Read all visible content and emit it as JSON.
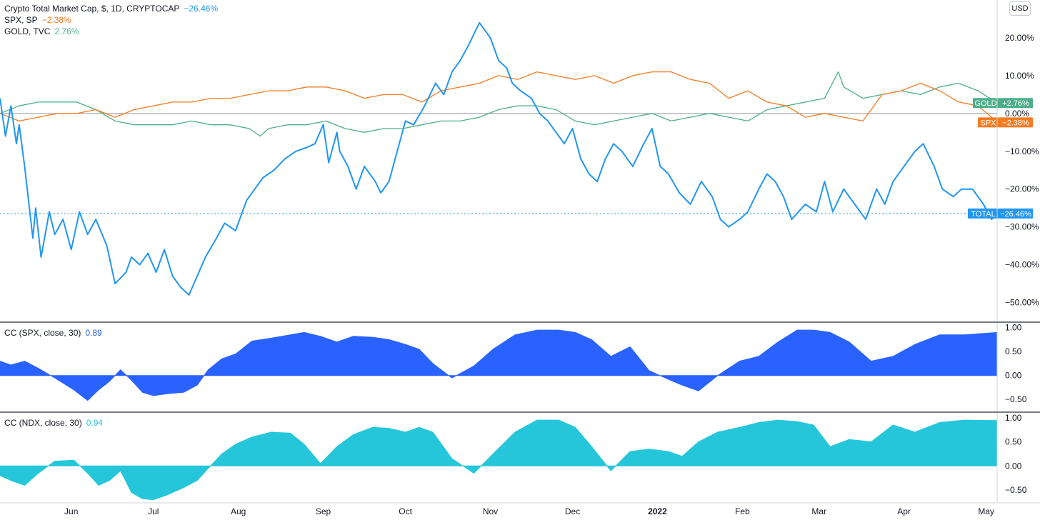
{
  "legend": {
    "total": {
      "label": "Crypto Total Market Cap, $, 1D, CRYPTOCAP",
      "value": "−26.46%"
    },
    "spx": {
      "label": "SPX, SP",
      "value": "−2.38%"
    },
    "gold": {
      "label": "GOLD, TVC",
      "value": "2.76%"
    }
  },
  "scale_button": "USD",
  "badges": {
    "gold": {
      "name": "GOLD",
      "value": "+2.76%"
    },
    "spx": {
      "name": "SPX",
      "value": "−2.38%"
    },
    "total": {
      "name": "TOTAL",
      "value": "−26.46%"
    }
  },
  "indicators": [
    {
      "label": "CC (SPX, close, 30)",
      "value": "0.89"
    },
    {
      "label": "CC (NDX, close, 30)",
      "value": "0.94"
    }
  ],
  "colors": {
    "total": "#2196f3",
    "spx": "#f57c22",
    "gold": "#4caf8a",
    "cc_spx": "#2962ff",
    "cc_ndx": "#26c6da"
  },
  "chart_data": [
    {
      "type": "line",
      "title": "Crypto Total Market Cap, $, 1D, CRYPTOCAP",
      "x_range": [
        "2021-05-06",
        "2022-05-05"
      ],
      "ylim": [
        -55,
        30
      ],
      "y_ticks": [
        {
          "value": 20,
          "label": "20.00%"
        },
        {
          "value": 10,
          "label": "10.00%"
        },
        {
          "value": 0,
          "label": "0.00%"
        },
        {
          "value": -10,
          "label": "−10.00%"
        },
        {
          "value": -20,
          "label": "−20.00%"
        },
        {
          "value": -30,
          "label": "−30.00%"
        },
        {
          "value": -40,
          "label": "−40.00%"
        },
        {
          "value": -50,
          "label": "−50.00%"
        }
      ],
      "x_ticks": [
        {
          "date": "2021-06-01",
          "label": "Jun"
        },
        {
          "date": "2021-07-01",
          "label": "Jul"
        },
        {
          "date": "2021-08-01",
          "label": "Aug"
        },
        {
          "date": "2021-09-01",
          "label": "Sep"
        },
        {
          "date": "2021-10-01",
          "label": "Oct"
        },
        {
          "date": "2021-11-01",
          "label": "Nov"
        },
        {
          "date": "2021-12-01",
          "label": "Dec"
        },
        {
          "date": "2022-01-01",
          "label": "2022"
        },
        {
          "date": "2022-02-01",
          "label": "Feb"
        },
        {
          "date": "2022-03-01",
          "label": "Mar"
        },
        {
          "date": "2022-04-01",
          "label": "Apr"
        },
        {
          "date": "2022-05-01",
          "label": "May"
        }
      ],
      "series": [
        {
          "name": "TOTAL",
          "color": "#2196f3",
          "dates": [
            "2021-05-06",
            "2021-05-08",
            "2021-05-10",
            "2021-05-12",
            "2021-05-13",
            "2021-05-15",
            "2021-05-18",
            "2021-05-19",
            "2021-05-21",
            "2021-05-24",
            "2021-05-26",
            "2021-05-29",
            "2021-06-01",
            "2021-06-04",
            "2021-06-07",
            "2021-06-10",
            "2021-06-14",
            "2021-06-17",
            "2021-06-21",
            "2021-06-23",
            "2021-06-26",
            "2021-06-29",
            "2021-07-02",
            "2021-07-05",
            "2021-07-08",
            "2021-07-11",
            "2021-07-14",
            "2021-07-17",
            "2021-07-20",
            "2021-07-24",
            "2021-07-27",
            "2021-07-31",
            "2021-08-04",
            "2021-08-07",
            "2021-08-10",
            "2021-08-14",
            "2021-08-18",
            "2021-08-22",
            "2021-08-26",
            "2021-08-29",
            "2021-09-01",
            "2021-09-03",
            "2021-09-06",
            "2021-09-07",
            "2021-09-10",
            "2021-09-13",
            "2021-09-16",
            "2021-09-20",
            "2021-09-22",
            "2021-09-25",
            "2021-09-28",
            "2021-10-01",
            "2021-10-04",
            "2021-10-08",
            "2021-10-12",
            "2021-10-15",
            "2021-10-18",
            "2021-10-21",
            "2021-10-24",
            "2021-10-28",
            "2021-11-01",
            "2021-11-04",
            "2021-11-07",
            "2021-11-09",
            "2021-11-12",
            "2021-11-16",
            "2021-11-19",
            "2021-11-22",
            "2021-11-25",
            "2021-11-28",
            "2021-12-01",
            "2021-12-04",
            "2021-12-07",
            "2021-12-10",
            "2021-12-13",
            "2021-12-16",
            "2021-12-19",
            "2021-12-23",
            "2021-12-27",
            "2021-12-30",
            "2022-01-02",
            "2022-01-05",
            "2022-01-09",
            "2022-01-13",
            "2022-01-17",
            "2022-01-21",
            "2022-01-24",
            "2022-01-27",
            "2022-01-31",
            "2022-02-03",
            "2022-02-07",
            "2022-02-10",
            "2022-02-13",
            "2022-02-16",
            "2022-02-19",
            "2022-02-24",
            "2022-02-28",
            "2022-03-03",
            "2022-03-06",
            "2022-03-10",
            "2022-03-14",
            "2022-03-18",
            "2022-03-22",
            "2022-03-25",
            "2022-03-28",
            "2022-04-01",
            "2022-04-05",
            "2022-04-08",
            "2022-04-12",
            "2022-04-15",
            "2022-04-19",
            "2022-04-22",
            "2022-04-26",
            "2022-04-30",
            "2022-05-03",
            "2022-05-05"
          ],
          "values": [
            4,
            -6,
            2,
            -8,
            -3,
            -14,
            -33,
            -25,
            -38,
            -26,
            -32,
            -28,
            -36,
            -26,
            -32,
            -28,
            -35,
            -45,
            -42,
            -38,
            -40,
            -37,
            -42,
            -36,
            -43,
            -46,
            -48,
            -43,
            -38,
            -33,
            -29,
            -31,
            -23,
            -20,
            -17,
            -15,
            -12,
            -10,
            -9,
            -8,
            -3,
            -13,
            -5,
            -10,
            -14,
            -20,
            -14,
            -18,
            -21,
            -18,
            -10,
            -2,
            -3,
            2,
            8,
            5,
            11,
            14,
            18,
            24,
            20,
            14,
            12,
            8,
            6,
            4,
            0,
            -2,
            -5,
            -8,
            -4,
            -12,
            -16,
            -18,
            -12,
            -8,
            -10,
            -14,
            -8,
            -4,
            -14,
            -16,
            -21,
            -24,
            -18,
            -22,
            -28,
            -30,
            -28,
            -26,
            -20,
            -16,
            -18,
            -22,
            -28,
            -24,
            -26,
            -18,
            -26,
            -20,
            -24,
            -28,
            -20,
            -24,
            -18,
            -14,
            -10,
            -8,
            -14,
            -20,
            -22,
            -20,
            -20,
            -24,
            -28,
            -26.46
          ]
        },
        {
          "name": "SPX",
          "color": "#f57c22",
          "dates": [
            "2021-05-06",
            "2021-05-13",
            "2021-05-20",
            "2021-05-27",
            "2021-06-03",
            "2021-06-10",
            "2021-06-17",
            "2021-06-24",
            "2021-07-01",
            "2021-07-08",
            "2021-07-15",
            "2021-07-22",
            "2021-07-29",
            "2021-08-05",
            "2021-08-12",
            "2021-08-19",
            "2021-08-26",
            "2021-09-02",
            "2021-09-09",
            "2021-09-16",
            "2021-09-23",
            "2021-09-30",
            "2021-10-07",
            "2021-10-14",
            "2021-10-21",
            "2021-10-28",
            "2021-11-04",
            "2021-11-11",
            "2021-11-18",
            "2021-11-25",
            "2021-12-02",
            "2021-12-09",
            "2021-12-16",
            "2021-12-23",
            "2021-12-30",
            "2022-01-06",
            "2022-01-13",
            "2022-01-20",
            "2022-01-27",
            "2022-02-03",
            "2022-02-10",
            "2022-02-17",
            "2022-02-24",
            "2022-03-03",
            "2022-03-10",
            "2022-03-17",
            "2022-03-24",
            "2022-03-31",
            "2022-04-07",
            "2022-04-14",
            "2022-04-21",
            "2022-04-28",
            "2022-05-03",
            "2022-05-05"
          ],
          "values": [
            0,
            -2,
            -1,
            0,
            0,
            1,
            -1,
            1,
            2,
            3,
            3,
            4,
            4,
            5,
            6,
            6,
            7,
            7,
            6,
            4,
            5,
            5,
            3,
            6,
            7,
            8,
            10,
            9,
            11,
            10,
            9,
            10,
            8,
            10,
            11,
            11,
            9,
            8,
            4,
            6,
            3,
            2,
            -1,
            0,
            -1,
            -2,
            5,
            6,
            8,
            6,
            3,
            2,
            -1,
            -2.38
          ]
        },
        {
          "name": "GOLD",
          "color": "#4caf8a",
          "dates": [
            "2021-05-06",
            "2021-05-13",
            "2021-05-20",
            "2021-05-27",
            "2021-06-03",
            "2021-06-10",
            "2021-06-17",
            "2021-06-24",
            "2021-07-01",
            "2021-07-08",
            "2021-07-15",
            "2021-07-22",
            "2021-07-29",
            "2021-08-05",
            "2021-08-09",
            "2021-08-12",
            "2021-08-19",
            "2021-08-26",
            "2021-09-02",
            "2021-09-09",
            "2021-09-16",
            "2021-09-23",
            "2021-09-30",
            "2021-10-07",
            "2021-10-14",
            "2021-10-21",
            "2021-10-28",
            "2021-11-04",
            "2021-11-11",
            "2021-11-18",
            "2021-11-25",
            "2021-12-02",
            "2021-12-09",
            "2021-12-16",
            "2021-12-23",
            "2021-12-30",
            "2022-01-06",
            "2022-01-13",
            "2022-01-20",
            "2022-01-27",
            "2022-02-03",
            "2022-02-10",
            "2022-02-17",
            "2022-02-24",
            "2022-03-03",
            "2022-03-08",
            "2022-03-10",
            "2022-03-17",
            "2022-03-24",
            "2022-03-31",
            "2022-04-07",
            "2022-04-14",
            "2022-04-21",
            "2022-04-28",
            "2022-05-05"
          ],
          "values": [
            0,
            2,
            3,
            3,
            3,
            1,
            -2,
            -3,
            -3,
            -3,
            -2,
            -3,
            -3,
            -4,
            -6,
            -4,
            -3,
            -3,
            -2,
            -4,
            -5,
            -4,
            -4,
            -3,
            -2,
            -2,
            -1,
            1,
            2,
            2,
            1,
            -2,
            -3,
            -2,
            -1,
            0,
            -2,
            -1,
            0,
            -1,
            -2,
            1,
            2,
            3,
            4,
            11,
            7,
            4,
            5,
            6,
            5,
            7,
            8,
            6,
            2.76
          ]
        }
      ]
    },
    {
      "type": "area",
      "title": "CC (SPX, close, 30)",
      "ylim": [
        -0.75,
        1.1
      ],
      "y_ticks": [
        {
          "value": 1.0,
          "label": "1.00"
        },
        {
          "value": 0.5,
          "label": "0.50"
        },
        {
          "value": 0.0,
          "label": "0.00"
        },
        {
          "value": -0.5,
          "label": "−0.50"
        }
      ],
      "series": [
        {
          "name": "CC (SPX, close, 30)",
          "color": "#2962ff",
          "dates": [
            "2021-05-06",
            "2021-05-10",
            "2021-05-15",
            "2021-05-20",
            "2021-05-26",
            "2021-06-02",
            "2021-06-07",
            "2021-06-11",
            "2021-06-15",
            "2021-06-19",
            "2021-06-23",
            "2021-06-27",
            "2021-07-01",
            "2021-07-06",
            "2021-07-12",
            "2021-07-17",
            "2021-07-21",
            "2021-07-26",
            "2021-07-31",
            "2021-08-06",
            "2021-08-13",
            "2021-08-20",
            "2021-08-25",
            "2021-08-31",
            "2021-09-06",
            "2021-09-12",
            "2021-09-19",
            "2021-09-25",
            "2021-10-01",
            "2021-10-06",
            "2021-10-11",
            "2021-10-18",
            "2021-10-26",
            "2021-11-02",
            "2021-11-10",
            "2021-11-18",
            "2021-11-26",
            "2021-12-02",
            "2021-12-08",
            "2021-12-15",
            "2021-12-22",
            "2021-12-29",
            "2022-01-05",
            "2022-01-10",
            "2022-01-16",
            "2022-01-23",
            "2022-01-31",
            "2022-02-07",
            "2022-02-14",
            "2022-02-21",
            "2022-02-27",
            "2022-03-05",
            "2022-03-12",
            "2022-03-20",
            "2022-03-28",
            "2022-04-05",
            "2022-04-14",
            "2022-04-23",
            "2022-05-05"
          ],
          "values": [
            0.3,
            0.22,
            0.3,
            0.15,
            -0.05,
            -0.3,
            -0.52,
            -0.3,
            -0.12,
            0.12,
            -0.1,
            -0.35,
            -0.42,
            -0.38,
            -0.35,
            -0.2,
            0.12,
            0.35,
            0.45,
            0.72,
            0.78,
            0.85,
            0.9,
            0.82,
            0.7,
            0.82,
            0.8,
            0.75,
            0.65,
            0.55,
            0.25,
            -0.05,
            0.2,
            0.55,
            0.85,
            0.95,
            0.95,
            0.9,
            0.75,
            0.4,
            0.6,
            0.1,
            -0.08,
            -0.2,
            -0.32,
            0.0,
            0.3,
            0.4,
            0.7,
            0.95,
            0.95,
            0.9,
            0.7,
            0.3,
            0.4,
            0.65,
            0.85,
            0.85,
            0.9
          ]
        }
      ]
    },
    {
      "type": "area",
      "title": "CC (NDX, close, 30)",
      "ylim": [
        -0.75,
        1.1
      ],
      "y_ticks": [
        {
          "value": 1.0,
          "label": "1.00"
        },
        {
          "value": 0.5,
          "label": "0.50"
        },
        {
          "value": 0.0,
          "label": "0.00"
        },
        {
          "value": -0.5,
          "label": "−0.50"
        }
      ],
      "series": [
        {
          "name": "CC (NDX, close, 30)",
          "color": "#26c6da",
          "dates": [
            "2021-05-06",
            "2021-05-10",
            "2021-05-15",
            "2021-05-20",
            "2021-05-26",
            "2021-06-02",
            "2021-06-07",
            "2021-06-11",
            "2021-06-15",
            "2021-06-19",
            "2021-06-23",
            "2021-06-27",
            "2021-07-01",
            "2021-07-06",
            "2021-07-12",
            "2021-07-17",
            "2021-07-21",
            "2021-07-26",
            "2021-07-31",
            "2021-08-06",
            "2021-08-13",
            "2021-08-20",
            "2021-08-25",
            "2021-08-31",
            "2021-09-06",
            "2021-09-12",
            "2021-09-19",
            "2021-09-25",
            "2021-10-01",
            "2021-10-06",
            "2021-10-11",
            "2021-10-18",
            "2021-10-26",
            "2021-11-02",
            "2021-11-10",
            "2021-11-18",
            "2021-11-26",
            "2021-12-02",
            "2021-12-08",
            "2021-12-15",
            "2021-12-22",
            "2021-12-29",
            "2022-01-05",
            "2022-01-10",
            "2022-01-16",
            "2022-01-23",
            "2022-01-31",
            "2022-02-07",
            "2022-02-14",
            "2022-02-21",
            "2022-02-27",
            "2022-03-05",
            "2022-03-12",
            "2022-03-20",
            "2022-03-28",
            "2022-04-05",
            "2022-04-14",
            "2022-04-23",
            "2022-05-05"
          ],
          "values": [
            -0.2,
            -0.3,
            -0.4,
            -0.15,
            0.1,
            0.12,
            -0.15,
            -0.4,
            -0.3,
            -0.1,
            -0.55,
            -0.68,
            -0.7,
            -0.6,
            -0.45,
            -0.3,
            -0.05,
            0.25,
            0.45,
            0.6,
            0.7,
            0.68,
            0.45,
            0.05,
            0.4,
            0.65,
            0.8,
            0.78,
            0.7,
            0.8,
            0.7,
            0.15,
            -0.15,
            0.25,
            0.7,
            0.95,
            0.95,
            0.8,
            0.4,
            -0.1,
            0.3,
            0.35,
            0.3,
            0.2,
            0.5,
            0.7,
            0.8,
            0.9,
            0.95,
            0.92,
            0.85,
            0.4,
            0.55,
            0.5,
            0.85,
            0.7,
            0.9,
            0.95,
            0.94
          ]
        }
      ]
    }
  ]
}
